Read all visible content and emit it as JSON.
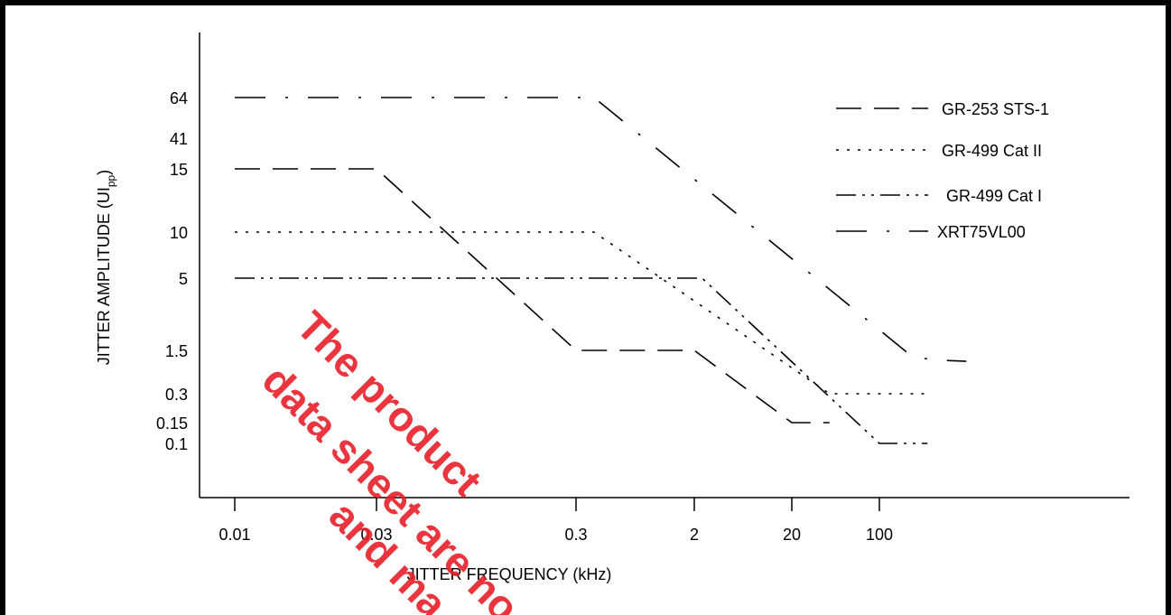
{
  "chart_data": {
    "type": "line",
    "title": "",
    "xlabel": "JITTER FREQUENCY  (kHz)",
    "ylabel_main": "JITTER AMPLITUDE (UI",
    "ylabel_sub": "pp",
    "ylabel_close": ")",
    "x_ticks": [
      "0.01",
      "0.03",
      "0.3",
      "2",
      "20",
      "100"
    ],
    "y_ticks": [
      "64",
      "41",
      "15",
      "10",
      "5",
      "1.5",
      "0.3",
      "0.15",
      "0.1"
    ],
    "legend_position": "top-right",
    "legend": [
      {
        "label": "GR-253   STS-1",
        "dash": "28 14"
      },
      {
        "label": "GR-499   Cat II",
        "dash": "3 9"
      },
      {
        "label": "GR-499   Cat I",
        "dash": "22 7 3 7 3 7"
      },
      {
        "label": "XRT75VL00",
        "dash": "34 22 3 22"
      }
    ],
    "series": [
      {
        "name": "GR-253   STS-1",
        "dash": "28 14",
        "points": [
          [
            0.01,
            15
          ],
          [
            0.03,
            15
          ],
          [
            0.3,
            1.5
          ],
          [
            2,
            1.5
          ],
          [
            20,
            0.15
          ],
          [
            40,
            0.15
          ]
        ]
      },
      {
        "name": "GR-499   Cat II",
        "dash": "3 9",
        "points": [
          [
            0.01,
            10
          ],
          [
            0.4,
            10
          ],
          [
            40,
            0.3
          ],
          [
            100,
            0.3
          ],
          [
            200,
            0.3
          ]
        ]
      },
      {
        "name": "GR-499   Cat I",
        "dash": "22 7 3 7 3 7",
        "points": [
          [
            0.01,
            5
          ],
          [
            2.4,
            5
          ],
          [
            100,
            0.1
          ],
          [
            200,
            0.1
          ]
        ]
      },
      {
        "name": "XRT75VL00",
        "dash": "34 22 3 22",
        "points": [
          [
            0.01,
            64
          ],
          [
            0.4,
            64
          ],
          [
            160,
            1.2
          ],
          [
            220,
            1.05
          ],
          [
            350,
            1.0
          ]
        ]
      }
    ]
  },
  "watermark": {
    "lines": [
      "The product",
      "data sheet are no",
      "and ma"
    ]
  }
}
